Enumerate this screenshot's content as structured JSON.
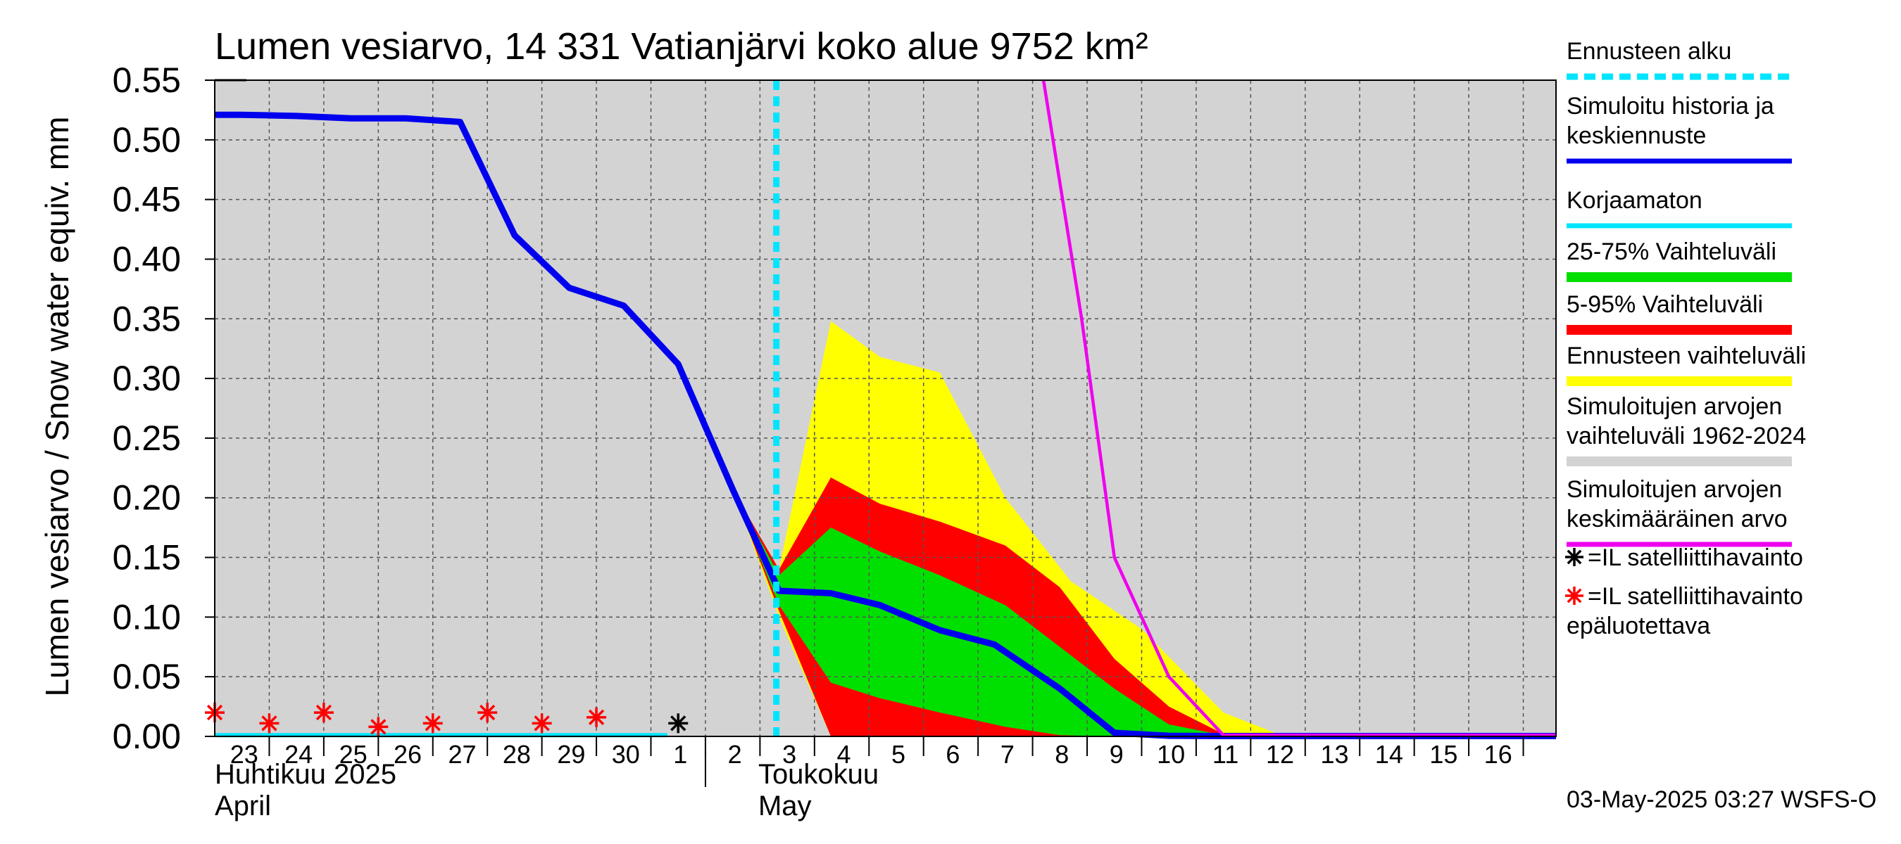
{
  "chart_data": {
    "type": "area",
    "title": "Lumen vesiarvo, 14 331 Vatianjärvi koko alue 9752 km²",
    "ylabel": "Lumen vesiarvo / Snow water equiv.    mm",
    "ylim": [
      0,
      0.55
    ],
    "y_ticks": [
      "0.00",
      "0.05",
      "0.10",
      "0.15",
      "0.20",
      "0.25",
      "0.30",
      "0.35",
      "0.40",
      "0.45",
      "0.50",
      "0.55"
    ],
    "xlim": [
      -0.5,
      24.1
    ],
    "x_ticks": [
      {
        "x": 0,
        "label": "23"
      },
      {
        "x": 1,
        "label": "24"
      },
      {
        "x": 2,
        "label": "25"
      },
      {
        "x": 3,
        "label": "26"
      },
      {
        "x": 4,
        "label": "27"
      },
      {
        "x": 5,
        "label": "28"
      },
      {
        "x": 6,
        "label": "29"
      },
      {
        "x": 7,
        "label": "30"
      },
      {
        "x": 8,
        "label": "1"
      },
      {
        "x": 9,
        "label": "2"
      },
      {
        "x": 10,
        "label": "3"
      },
      {
        "x": 11,
        "label": "4"
      },
      {
        "x": 12,
        "label": "5"
      },
      {
        "x": 13,
        "label": "6"
      },
      {
        "x": 14,
        "label": "7"
      },
      {
        "x": 15,
        "label": "8"
      },
      {
        "x": 16,
        "label": "9"
      },
      {
        "x": 17,
        "label": "10"
      },
      {
        "x": 18,
        "label": "11"
      },
      {
        "x": 19,
        "label": "12"
      },
      {
        "x": 20,
        "label": "13"
      },
      {
        "x": 21,
        "label": "14"
      },
      {
        "x": 22,
        "label": "15"
      },
      {
        "x": 23,
        "label": "16"
      }
    ],
    "month_labels": [
      {
        "line1": "Huhtikuu  2025",
        "line2": "April",
        "start_x": -0.5
      },
      {
        "line1": "Toukokuu",
        "line2": "May",
        "start_x": 8.5
      }
    ],
    "forecast_start_x": 9.8,
    "grid": true,
    "legend_position": "right",
    "series": [
      {
        "name": "Simuloitujen arvojen vaihteluväli 1962-2024",
        "role": "band",
        "color": "#d3d3d3",
        "x": [
          -0.5,
          24.1
        ],
        "lower": [
          0,
          0
        ],
        "upper": [
          0.55,
          0.55
        ]
      },
      {
        "name": "Ennusteen vaihteluväli",
        "role": "band",
        "color": "#ffff00",
        "x": [
          9,
          9.85,
          10.8,
          11.7,
          12.8,
          14,
          15.2,
          16.5,
          18,
          19
        ],
        "upper": [
          0.207,
          0.14,
          0.348,
          0.318,
          0.305,
          0.2,
          0.13,
          0.09,
          0.02,
          0.002
        ],
        "lower": [
          0.207,
          0.1,
          0,
          0,
          0,
          0,
          0,
          0,
          0,
          0
        ]
      },
      {
        "name": "5-95% Vaihteluväli",
        "role": "band",
        "color": "#ff0000",
        "x": [
          9,
          9.85,
          10.8,
          11.7,
          12.8,
          14,
          15,
          16,
          17,
          18
        ],
        "upper": [
          0.207,
          0.14,
          0.217,
          0.195,
          0.18,
          0.16,
          0.125,
          0.065,
          0.025,
          0.002
        ],
        "lower": [
          0.207,
          0.105,
          0,
          0,
          0,
          0,
          0,
          0,
          0,
          0
        ]
      },
      {
        "name": "25-75% Vaihteluväli",
        "role": "band",
        "color": "#00e000",
        "x": [
          9,
          9.85,
          10.8,
          11.7,
          12.8,
          14,
          15,
          16,
          17,
          18
        ],
        "upper": [
          0.207,
          0.135,
          0.175,
          0.155,
          0.135,
          0.11,
          0.075,
          0.04,
          0.01,
          0.001
        ],
        "lower": [
          0.207,
          0.11,
          0.045,
          0.032,
          0.02,
          0.008,
          0.001,
          0,
          0,
          0
        ]
      },
      {
        "name": "Korjaamaton",
        "role": "line",
        "color": "#00e5ff",
        "x": [
          -0.5,
          7.8
        ],
        "y": [
          0.001,
          0.001
        ]
      },
      {
        "name": "Simuloitu historia ja keskiennuste",
        "role": "line",
        "color": "#0000ee",
        "x": [
          -0.5,
          0,
          1,
          2,
          3,
          4,
          5,
          6,
          7,
          8,
          9,
          9.85,
          10.8,
          11.7,
          12.8,
          13.8,
          15,
          16,
          17,
          18,
          24.1
        ],
        "y": [
          0.521,
          0.521,
          0.52,
          0.518,
          0.518,
          0.515,
          0.42,
          0.376,
          0.361,
          0.312,
          0.207,
          0.122,
          0.12,
          0.11,
          0.089,
          0.077,
          0.04,
          0.003,
          0.0005,
          0.0003,
          0.0003
        ]
      },
      {
        "name": "Simuloitujen arvojen keskimääräinen arvo",
        "role": "line",
        "color": "#ee00ee",
        "x": [
          14.7,
          15.4,
          16,
          17,
          18,
          24.1
        ],
        "y": [
          0.55,
          0.35,
          0.15,
          0.05,
          0.001,
          0.001
        ]
      },
      {
        "name": "=IL satelliittihavainto",
        "role": "marker",
        "color": "#000000",
        "x": [
          8
        ],
        "y": [
          0.011
        ]
      },
      {
        "name": "=IL satelliittihavainto epäluotettava",
        "role": "marker",
        "color": "#ff0000",
        "x": [
          -0.5,
          0.5,
          1.5,
          2.5,
          3.5,
          4.5,
          5.5,
          6.5
        ],
        "y": [
          0.02,
          0.011,
          0.02,
          0.008,
          0.011,
          0.02,
          0.011,
          0.016
        ]
      }
    ],
    "legend": [
      {
        "lines": [
          "Ennusteen alku"
        ],
        "swatch": "dashed",
        "color": "#00e5ff"
      },
      {
        "lines": [
          "Simuloitu historia ja",
          "keskiennuste"
        ],
        "swatch": "line",
        "color": "#0000ee"
      },
      {
        "lines": [
          "Korjaamaton"
        ],
        "swatch": "line",
        "color": "#00e5ff"
      },
      {
        "lines": [
          "25-75% Vaihteluväli"
        ],
        "swatch": "thick",
        "color": "#00e000"
      },
      {
        "lines": [
          "5-95% Vaihteluväli"
        ],
        "swatch": "thick",
        "color": "#ff0000"
      },
      {
        "lines": [
          "Ennusteen vaihteluväli"
        ],
        "swatch": "thick",
        "color": "#ffff00"
      },
      {
        "lines": [
          "Simuloitujen arvojen",
          "vaihteluväli 1962-2024"
        ],
        "swatch": "thick",
        "color": "#d3d3d3"
      },
      {
        "lines": [
          "Simuloitujen arvojen",
          "keskimääräinen arvo"
        ],
        "swatch": "line",
        "color": "#ee00ee"
      },
      {
        "lines": [
          "=IL satelliittihavainto"
        ],
        "swatch": "star",
        "color": "#000000"
      },
      {
        "lines": [
          "=IL satelliittihavainto",
          "epäluotettava"
        ],
        "swatch": "star",
        "color": "#ff0000"
      }
    ],
    "footer": "03-May-2025 03:27 WSFS-O"
  }
}
